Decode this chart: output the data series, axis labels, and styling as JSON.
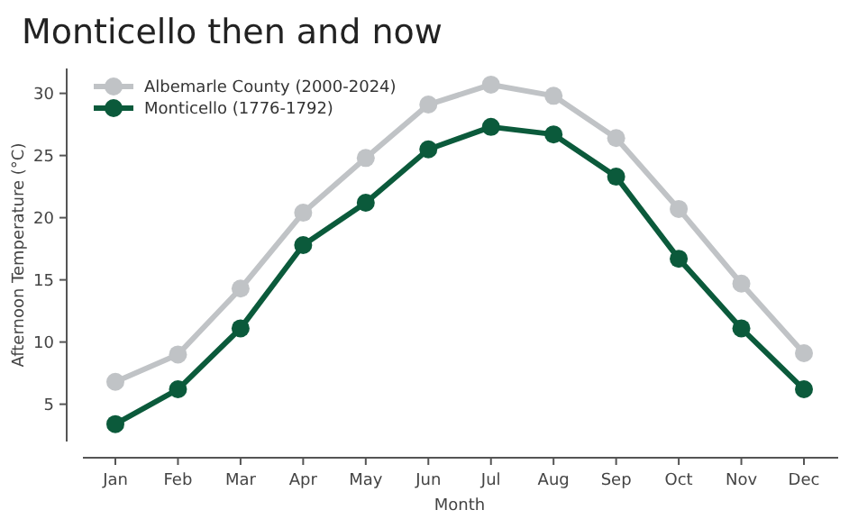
{
  "chart_data": {
    "type": "line",
    "title": "Monticello then and now",
    "xlabel": "Month",
    "ylabel": "Afternoon Temperature (°C)",
    "categories": [
      "Jan",
      "Feb",
      "Mar",
      "Apr",
      "May",
      "Jun",
      "Jul",
      "Aug",
      "Sep",
      "Oct",
      "Nov",
      "Dec"
    ],
    "series": [
      {
        "name": "Albemarle County (2000-2024)",
        "color": "#c0c3c6",
        "values": [
          6.8,
          9.0,
          14.3,
          20.4,
          24.8,
          29.1,
          30.7,
          29.8,
          26.4,
          20.7,
          14.7,
          9.1
        ]
      },
      {
        "name": "Monticello (1776-1792)",
        "color": "#0b5a3b",
        "values": [
          3.4,
          6.2,
          11.1,
          17.8,
          21.2,
          25.5,
          27.3,
          26.7,
          23.3,
          16.7,
          11.1,
          6.2
        ]
      }
    ],
    "ylim": [
      2,
      32
    ],
    "yticks": [
      5,
      10,
      15,
      20,
      25,
      30
    ],
    "grid": false,
    "legend": "top left",
    "marker": "circle",
    "line_style": "solid"
  }
}
